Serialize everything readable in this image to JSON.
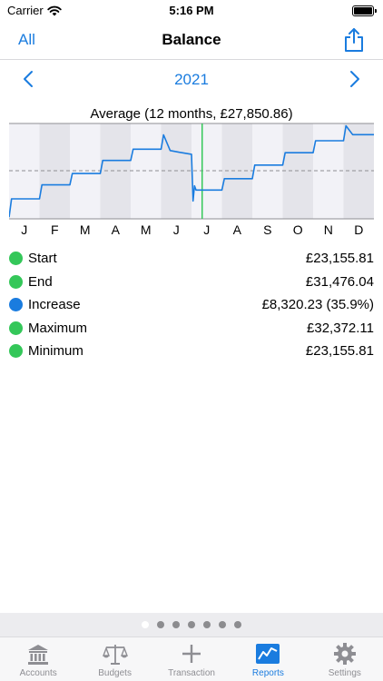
{
  "status": {
    "carrier": "Carrier",
    "time": "5:16 PM"
  },
  "nav": {
    "left": "All",
    "title": "Balance"
  },
  "year": "2021",
  "chart_data": {
    "type": "line",
    "title": "Average (12 months, £27,850.86)",
    "x_ticks": [
      "J",
      "F",
      "M",
      "A",
      "M",
      "J",
      "J",
      "A",
      "S",
      "O",
      "N",
      "D"
    ],
    "average": 27850.86,
    "ylim": [
      23000,
      32600
    ],
    "current_marker_month": 6.35,
    "series": [
      {
        "points": [
          [
            0,
            23155.81
          ],
          [
            0.08,
            25010
          ],
          [
            1.0,
            25010
          ],
          [
            1.08,
            26420
          ],
          [
            2.0,
            26420
          ],
          [
            2.08,
            27560
          ],
          [
            3.0,
            27560
          ],
          [
            3.08,
            28880
          ],
          [
            4.0,
            28880
          ],
          [
            4.08,
            30010
          ],
          [
            5.0,
            30010
          ],
          [
            5.08,
            31460
          ],
          [
            5.3,
            29880
          ],
          [
            5.6,
            29700
          ],
          [
            6.0,
            29500
          ],
          [
            6.05,
            24800
          ],
          [
            6.1,
            26320
          ],
          [
            6.15,
            25900
          ],
          [
            7.0,
            25900
          ],
          [
            7.08,
            27040
          ],
          [
            8.0,
            27040
          ],
          [
            8.08,
            28410
          ],
          [
            9.0,
            28410
          ],
          [
            9.08,
            29660
          ],
          [
            10.0,
            29660
          ],
          [
            10.08,
            30860
          ],
          [
            11.0,
            30860
          ],
          [
            11.08,
            32372.11
          ],
          [
            11.3,
            31476.04
          ],
          [
            12.0,
            31476.04
          ]
        ]
      }
    ]
  },
  "stats": [
    {
      "label": "Start",
      "value": "£23,155.81",
      "color": "#34c759"
    },
    {
      "label": "End",
      "value": "£31,476.04",
      "color": "#34c759"
    },
    {
      "label": "Increase",
      "value": "£8,320.23 (35.9%)",
      "color": "#1a7cdf"
    },
    {
      "label": "Maximum",
      "value": "£32,372.11",
      "color": "#34c759"
    },
    {
      "label": "Minimum",
      "value": "£23,155.81",
      "color": "#34c759"
    }
  ],
  "pages": {
    "count": 7,
    "active": 0
  },
  "tabs": [
    {
      "label": "Accounts",
      "icon": "bank-icon"
    },
    {
      "label": "Budgets",
      "icon": "scales-icon"
    },
    {
      "label": "Transaction",
      "icon": "plus-icon"
    },
    {
      "label": "Reports",
      "icon": "chart-icon",
      "active": true
    },
    {
      "label": "Settings",
      "icon": "gear-icon"
    }
  ],
  "colors": {
    "accent": "#1a7cdf",
    "green": "#34c759",
    "line": "#1a7cdf"
  }
}
